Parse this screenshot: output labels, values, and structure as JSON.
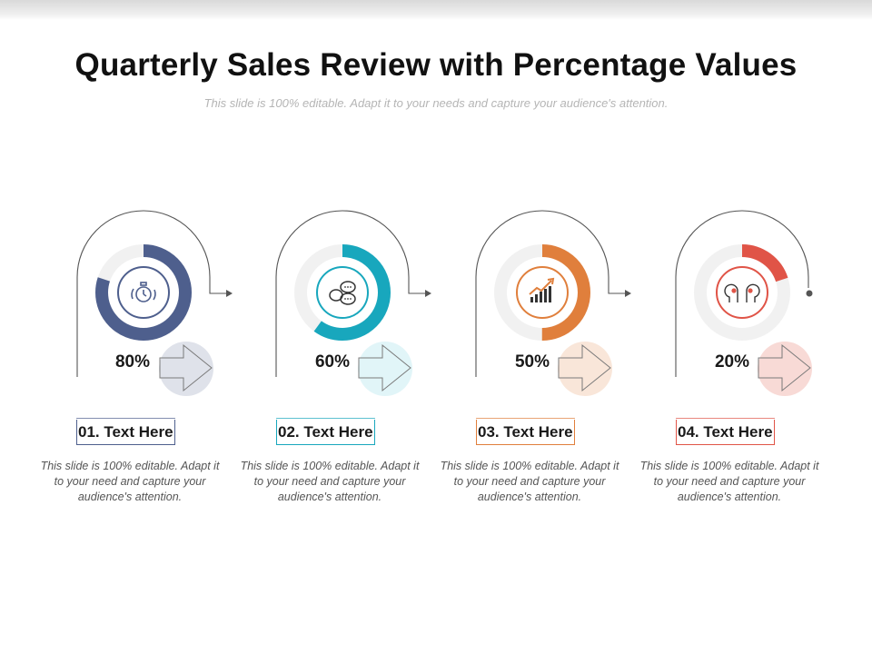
{
  "title": "Quarterly Sales Review with Percentage Values",
  "subtitle": "This slide is 100% editable.  Adapt it to your needs and capture your audience's attention.",
  "steps": [
    {
      "label": "01. Text Here",
      "percent_label": "80%",
      "value": 0.8,
      "color": "#4e5f8d",
      "light_color": "#dfe2ea",
      "icon": "stopwatch-icon",
      "description": "This slide is 100% editable. Adapt it to your need and capture your audience's attention."
    },
    {
      "label": "02. Text Here",
      "percent_label": "60%",
      "value": 0.6,
      "color": "#18a7bd",
      "light_color": "#e1f5f8",
      "icon": "chat-bubbles-icon",
      "description": "This slide is 100% editable. Adapt it to your need and capture your audience's attention."
    },
    {
      "label": "03. Text Here",
      "percent_label": "50%",
      "value": 0.5,
      "color": "#e07f3c",
      "light_color": "#f9e6d9",
      "icon": "growth-chart-icon",
      "description": "This slide is 100% editable. Adapt it to your need and capture your audience's attention."
    },
    {
      "label": "04. Text Here",
      "percent_label": "20%",
      "value": 0.2,
      "color": "#e05447",
      "light_color": "#f8dad6",
      "icon": "team-heads-icon",
      "description": "This slide is 100% editable. Adapt it to your need and capture your audience's attention."
    }
  ]
}
